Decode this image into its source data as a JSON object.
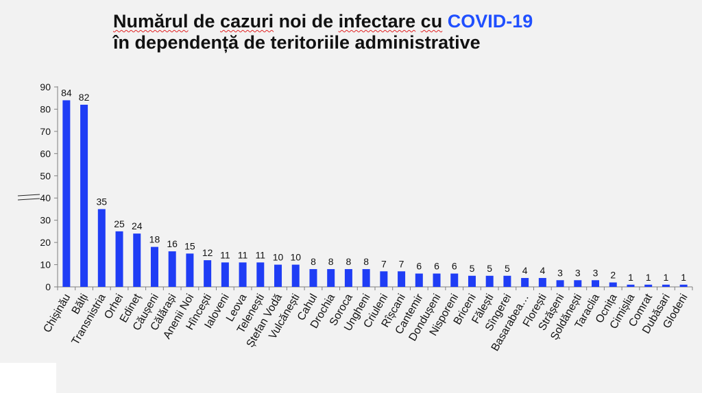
{
  "header": {
    "title_line1_part1": "Numărul",
    "title_line1_part2": " de ",
    "title_line1_part3": "cazuri",
    "title_line1_part4": " noi de ",
    "title_line1_part5": "infectare",
    "title_line1_part6": " ",
    "title_line1_part7": "cu",
    "title_line1_accent": " COVID-19",
    "title_line2": "în dependență de teritoriile administrative"
  },
  "colors": {
    "bar": "#1f3df5",
    "accent": "#1f4fff",
    "background": "#f2f2f2"
  },
  "chart_data": {
    "type": "bar",
    "title": "Numărul de cazuri noi de infectare cu COVID-19 în dependență de teritoriile administrative",
    "xlabel": "",
    "ylabel": "",
    "ylim": [
      0,
      90
    ],
    "yticks": [
      0,
      10,
      20,
      30,
      40,
      50,
      60,
      70,
      80,
      90
    ],
    "grid": false,
    "legend": "none",
    "categories": [
      "Chișinău",
      "Bălți",
      "Transnistria",
      "Orhei",
      "Edineț",
      "Căușeni",
      "Călărași",
      "Anenii Noi",
      "Hîncești",
      "Ialoveni",
      "Leova",
      "Telenești",
      "Ștefan Vodă",
      "Vulcănești",
      "Cahul",
      "Drochia",
      "Soroca",
      "Ungheni",
      "Criuleni",
      "Rîșcani",
      "Cantemir",
      "Dondușeni",
      "Nisporeni",
      "Briceni",
      "Fălești",
      "Sîngerei",
      "Basarabea…",
      "Florești",
      "Strășeni",
      "Șoldănești",
      "Taraclia",
      "Ocnița",
      "Cimișlia",
      "Comrat",
      "Dubăsari",
      "Glodeni"
    ],
    "values": [
      84,
      82,
      35,
      25,
      24,
      18,
      16,
      15,
      12,
      11,
      11,
      11,
      10,
      10,
      8,
      8,
      8,
      8,
      7,
      7,
      6,
      6,
      6,
      5,
      5,
      5,
      4,
      4,
      3,
      3,
      3,
      2,
      1,
      1,
      1,
      1
    ]
  }
}
